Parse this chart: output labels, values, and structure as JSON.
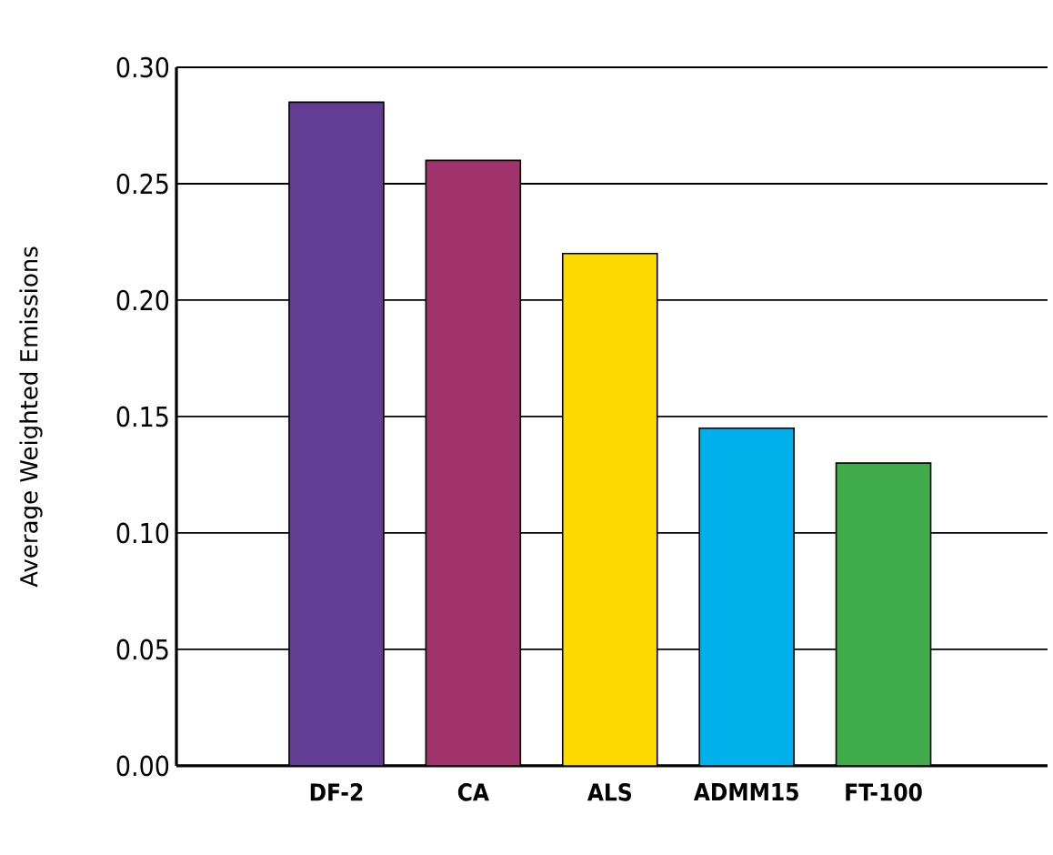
{
  "chart_data": {
    "type": "bar",
    "ylabel": "Average Weighted Emissions",
    "categories": [
      "DF-2",
      "CA",
      "ALS",
      "ADMM15",
      "FT-100"
    ],
    "values": [
      0.285,
      0.26,
      0.22,
      0.145,
      0.13
    ],
    "colors": [
      "#633c93",
      "#a0336b",
      "#fedb00",
      "#00b0ea",
      "#3fab4a"
    ],
    "ylim": [
      0,
      0.3
    ],
    "yticks": [
      {
        "value": 0,
        "label": "0.00"
      },
      {
        "value": 0.05,
        "label": "0.05"
      },
      {
        "value": 0.1,
        "label": "0.10"
      },
      {
        "value": 0.15,
        "label": "0.15"
      },
      {
        "value": 0.2,
        "label": "0.20"
      },
      {
        "value": 0.25,
        "label": "0.25"
      },
      {
        "value": 0.3,
        "label": "0.30"
      }
    ],
    "grid": "y"
  }
}
